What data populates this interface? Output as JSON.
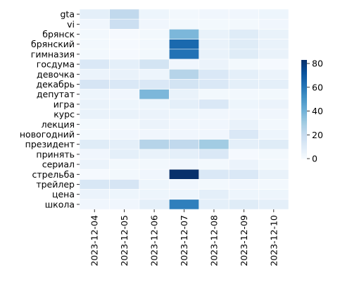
{
  "chart_data": {
    "type": "heatmap",
    "x": [
      "2023-12-04",
      "2023-12-05",
      "2023-12-06",
      "2023-12-07",
      "2023-12-08",
      "2023-12-09",
      "2023-12-10"
    ],
    "categories": [
      "gta",
      "vi",
      "брянск",
      "брянский",
      "гимназия",
      "госдума",
      "девочка",
      "декабрь",
      "депутат",
      "игра",
      "курс",
      "лекция",
      "новогодний",
      "президент",
      "принять",
      "сериал",
      "стрельба",
      "трейлер",
      "цена",
      "школа"
    ],
    "values": [
      [
        8,
        22,
        4,
        2,
        3,
        3,
        4
      ],
      [
        3,
        18,
        3,
        2,
        2,
        2,
        3
      ],
      [
        2,
        1,
        2,
        38,
        6,
        10,
        6
      ],
      [
        2,
        1,
        2,
        65,
        6,
        10,
        6
      ],
      [
        2,
        1,
        2,
        62,
        6,
        10,
        6
      ],
      [
        12,
        8,
        15,
        3,
        5,
        2,
        1
      ],
      [
        5,
        6,
        4,
        25,
        12,
        8,
        5
      ],
      [
        14,
        12,
        12,
        15,
        12,
        8,
        8
      ],
      [
        4,
        3,
        38,
        6,
        2,
        2,
        2
      ],
      [
        6,
        4,
        4,
        8,
        12,
        4,
        5
      ],
      [
        6,
        6,
        5,
        4,
        3,
        3,
        3
      ],
      [
        2,
        2,
        5,
        3,
        3,
        6,
        2
      ],
      [
        2,
        3,
        3,
        3,
        3,
        12,
        4
      ],
      [
        10,
        8,
        25,
        22,
        30,
        8,
        10
      ],
      [
        3,
        8,
        6,
        8,
        12,
        1,
        2
      ],
      [
        5,
        2,
        2,
        3,
        2,
        5,
        2
      ],
      [
        1,
        2,
        3,
        83,
        12,
        12,
        6
      ],
      [
        13,
        14,
        4,
        3,
        2,
        3,
        2
      ],
      [
        5,
        4,
        4,
        4,
        8,
        4,
        4
      ],
      [
        3,
        3,
        8,
        58,
        8,
        10,
        8
      ]
    ],
    "colormap": "Blues",
    "clim": [
      0,
      83
    ],
    "colorbar_ticks": [
      0,
      20,
      40,
      60,
      80
    ]
  }
}
